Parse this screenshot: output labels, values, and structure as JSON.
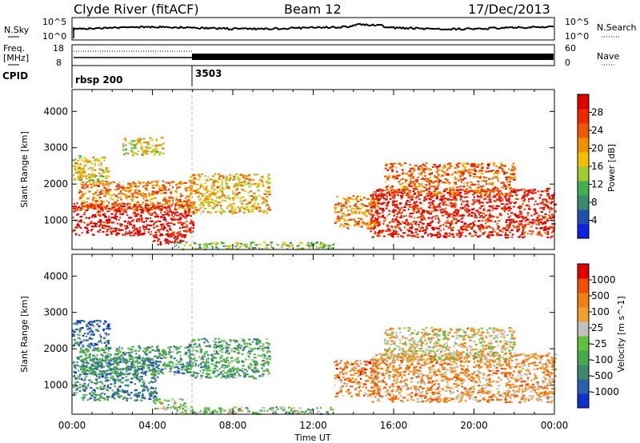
{
  "header": {
    "station": "Clyde River (fitACF)",
    "beam": "Beam 12",
    "date": "17/Dec/2013"
  },
  "top_panel": {
    "left_label": "N.Sky",
    "right_label": "N.Search",
    "ticks_left": [
      "10^5",
      "10^0"
    ],
    "ticks_right": [
      "10^5",
      "10^0"
    ]
  },
  "freq_panel": {
    "left_label_1": "Freq.",
    "left_label_2": "[MHz]",
    "right_label": "Nave",
    "ticks_left": [
      "18",
      "8"
    ],
    "ticks_right": [
      "60",
      "0"
    ]
  },
  "cpid": {
    "label": "CPID",
    "segments": [
      {
        "name": "rbsp 200",
        "start_hour": 0
      },
      {
        "name": "3503",
        "start_hour": 6
      }
    ]
  },
  "chart_data": [
    {
      "type": "heatmap",
      "quantity": "power",
      "ylabel": "Slant Range [km]",
      "xlim_hours": [
        0,
        24
      ],
      "ylim_km": [
        200,
        4600
      ],
      "yticks": [
        1000,
        2000,
        3000,
        4000
      ],
      "colorbar": {
        "label": "Power [dB]",
        "ticks": [
          "4",
          "8",
          "12",
          "16",
          "20",
          "24",
          "28"
        ],
        "colors": [
          "#1020e0",
          "#2050b0",
          "#3a8a70",
          "#40b050",
          "#a0cc30",
          "#f0c000",
          "#f09000",
          "#f05800",
          "#f02800",
          "#e00000"
        ]
      },
      "scatter_regions": [
        {
          "t_start": 0.0,
          "t_end": 6.0,
          "r_start": 600,
          "r_end": 1500,
          "level": 0.95
        },
        {
          "t_start": 0.3,
          "t_end": 6.0,
          "r_start": 1300,
          "r_end": 2100,
          "level": 0.7
        },
        {
          "t_start": 0.0,
          "t_end": 1.8,
          "r_start": 2100,
          "r_end": 2800,
          "level": 0.55
        },
        {
          "t_start": 2.5,
          "t_end": 4.5,
          "r_start": 2800,
          "r_end": 3300,
          "level": 0.5
        },
        {
          "t_start": 4.0,
          "t_end": 5.6,
          "r_start": 350,
          "r_end": 650,
          "level": 0.95
        },
        {
          "t_start": 5.8,
          "t_end": 9.8,
          "r_start": 1200,
          "r_end": 2300,
          "level": 0.6
        },
        {
          "t_start": 5.0,
          "t_end": 13.0,
          "r_start": 220,
          "r_end": 420,
          "level": 0.4
        },
        {
          "t_start": 13.0,
          "t_end": 15.2,
          "r_start": 800,
          "r_end": 1700,
          "level": 0.7
        },
        {
          "t_start": 14.8,
          "t_end": 24.0,
          "r_start": 550,
          "r_end": 1900,
          "level": 0.9
        },
        {
          "t_start": 15.5,
          "t_end": 22.0,
          "r_start": 1700,
          "r_end": 2600,
          "level": 0.75
        }
      ]
    },
    {
      "type": "heatmap",
      "quantity": "velocity",
      "ylabel": "Slant Range [km]",
      "xlabel": "Time UT",
      "xticks": [
        "00:00",
        "04:00",
        "08:00",
        "12:00",
        "16:00",
        "20:00",
        "00:00"
      ],
      "xlim_hours": [
        0,
        24
      ],
      "ylim_km": [
        200,
        4600
      ],
      "yticks": [
        1000,
        2000,
        3000,
        4000
      ],
      "colorbar": {
        "label": "Velocity [m s^-1]",
        "ticks": [
          "1000",
          "500",
          "100",
          "25",
          "-25",
          "-100",
          "-500",
          "-1000"
        ],
        "colors": [
          "#1030d0",
          "#2a60b0",
          "#3c8868",
          "#48a850",
          "#60c040",
          "#c0c0c0",
          "#f0a030",
          "#f08010",
          "#f05000",
          "#e00000"
        ]
      },
      "scatter_regions": [
        {
          "t_start": 0.0,
          "t_end": 4.2,
          "r_start": 600,
          "r_end": 1800,
          "level": 0.25
        },
        {
          "t_start": 0.3,
          "t_end": 6.0,
          "r_start": 1300,
          "r_end": 2100,
          "level": 0.3
        },
        {
          "t_start": 0.0,
          "t_end": 1.8,
          "r_start": 2100,
          "r_end": 2800,
          "level": 0.15
        },
        {
          "t_start": 4.0,
          "t_end": 5.6,
          "r_start": 350,
          "r_end": 650,
          "level": 0.5
        },
        {
          "t_start": 5.8,
          "t_end": 9.8,
          "r_start": 1200,
          "r_end": 2300,
          "level": 0.35
        },
        {
          "t_start": 5.0,
          "t_end": 13.0,
          "r_start": 220,
          "r_end": 420,
          "level": 0.45
        },
        {
          "t_start": 13.0,
          "t_end": 15.2,
          "r_start": 700,
          "r_end": 1700,
          "level": 0.75
        },
        {
          "t_start": 14.8,
          "t_end": 24.0,
          "r_start": 550,
          "r_end": 1900,
          "level": 0.72
        },
        {
          "t_start": 15.5,
          "t_end": 22.0,
          "r_start": 1700,
          "r_end": 2600,
          "level": 0.6
        }
      ]
    }
  ]
}
